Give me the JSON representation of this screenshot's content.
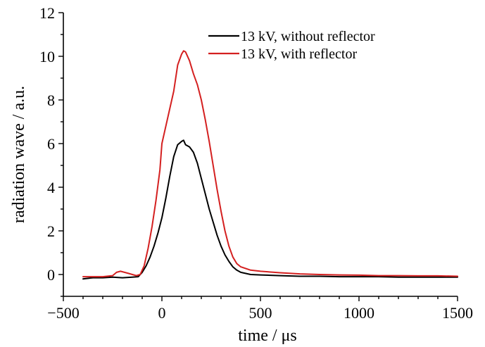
{
  "chart_data": {
    "type": "line",
    "title": "",
    "xlabel": "time / μs",
    "ylabel": "radiation wave / a.u.",
    "xlim": [
      -500,
      1500
    ],
    "ylim": [
      -1,
      12
    ],
    "x_ticks": [
      -500,
      0,
      500,
      1000,
      1500
    ],
    "x_tick_labels": [
      "−500",
      "0",
      "500",
      "1000",
      "1500"
    ],
    "y_ticks": [
      0,
      2,
      4,
      6,
      8,
      10,
      12
    ],
    "y_tick_labels": [
      "0",
      "2",
      "4",
      "6",
      "8",
      "10",
      "12"
    ],
    "grid": false,
    "legend_position": "top-right",
    "series": [
      {
        "name": "13 kV, without reflector",
        "color": "#000000",
        "x": [
          -400,
          -350,
          -300,
          -250,
          -200,
          -150,
          -120,
          -100,
          -80,
          -60,
          -40,
          -20,
          0,
          20,
          40,
          60,
          80,
          100,
          110,
          120,
          140,
          160,
          180,
          200,
          220,
          240,
          260,
          280,
          300,
          320,
          340,
          360,
          380,
          400,
          450,
          500,
          600,
          700,
          800,
          900,
          1000,
          1100,
          1200,
          1300,
          1400,
          1500
        ],
        "y": [
          -0.2,
          -0.15,
          -0.15,
          -0.12,
          -0.15,
          -0.12,
          -0.1,
          0.1,
          0.4,
          0.8,
          1.3,
          1.9,
          2.6,
          3.5,
          4.5,
          5.4,
          5.95,
          6.1,
          6.15,
          5.95,
          5.85,
          5.6,
          5.1,
          4.4,
          3.7,
          3.0,
          2.4,
          1.8,
          1.3,
          0.9,
          0.6,
          0.35,
          0.2,
          0.1,
          0.0,
          -0.02,
          -0.05,
          -0.08,
          -0.08,
          -0.1,
          -0.1,
          -0.1,
          -0.12,
          -0.12,
          -0.12,
          -0.12
        ]
      },
      {
        "name": "13 kV, with reflector",
        "color": "#d42020",
        "x": [
          -400,
          -350,
          -300,
          -250,
          -230,
          -210,
          -190,
          -170,
          -150,
          -130,
          -110,
          -90,
          -70,
          -50,
          -30,
          -10,
          0,
          20,
          40,
          60,
          80,
          100,
          110,
          120,
          140,
          160,
          180,
          200,
          220,
          240,
          260,
          280,
          300,
          320,
          340,
          360,
          380,
          400,
          450,
          500,
          600,
          700,
          800,
          900,
          1000,
          1100,
          1200,
          1300,
          1400,
          1500
        ],
        "y": [
          -0.1,
          -0.1,
          -0.1,
          -0.05,
          0.1,
          0.15,
          0.1,
          0.05,
          0.0,
          -0.05,
          0.0,
          0.4,
          1.2,
          2.2,
          3.4,
          4.8,
          6.0,
          6.8,
          7.6,
          8.4,
          9.6,
          10.1,
          10.25,
          10.2,
          9.8,
          9.2,
          8.7,
          8.0,
          7.1,
          6.1,
          5.0,
          3.9,
          2.9,
          2.0,
          1.3,
          0.8,
          0.5,
          0.35,
          0.2,
          0.15,
          0.08,
          0.03,
          0.0,
          -0.02,
          -0.03,
          -0.05,
          -0.05,
          -0.06,
          -0.06,
          -0.08
        ]
      }
    ]
  }
}
